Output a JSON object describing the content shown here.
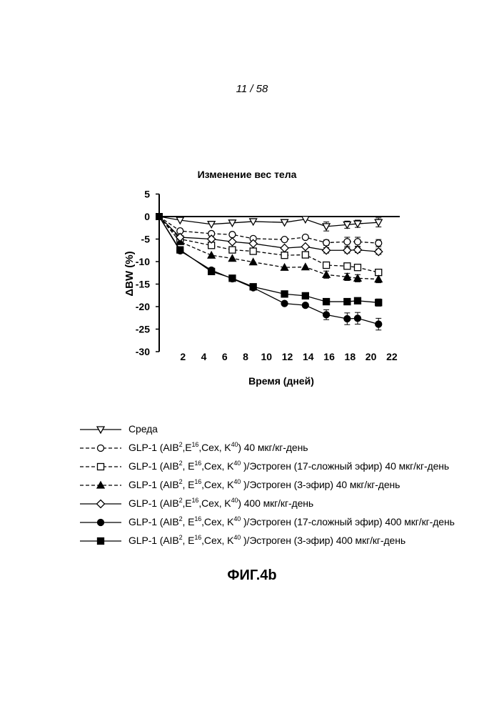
{
  "page_number": "11 / 58",
  "figure_label": "ФИГ.4b",
  "chart_data": {
    "type": "line",
    "title": "Изменение вес тела",
    "xlabel": "Время (дней)",
    "ylabel": "ΔBW (%)",
    "xlim": [
      0,
      23
    ],
    "ylim": [
      -30,
      5
    ],
    "x_ticks": [
      2,
      4,
      6,
      8,
      10,
      12,
      14,
      16,
      18,
      20,
      22
    ],
    "y_ticks": [
      5,
      0,
      -5,
      -10,
      -15,
      -20,
      -25,
      -30
    ],
    "x": [
      0,
      2,
      5,
      7,
      9,
      12,
      14,
      16,
      18,
      19,
      21
    ],
    "series": [
      {
        "name": "Среда",
        "marker": "triangle-down",
        "fill": "open",
        "dash": "solid",
        "values": [
          0,
          -0.8,
          -1.7,
          -1.4,
          -1.1,
          -1.3,
          -0.6,
          -2.2,
          -1.8,
          -1.6,
          -1.3
        ],
        "errors": [
          0,
          0,
          0,
          0,
          0,
          0,
          0,
          1.0,
          0.8,
          0.8,
          1.0
        ]
      },
      {
        "name": "GLP-1 (AIB2,E16,Cex,K40) 40 мкг/кг-день",
        "marker": "circle",
        "fill": "open",
        "dash": "dashed",
        "values": [
          0,
          -3.2,
          -3.8,
          -4.0,
          -4.9,
          -5.1,
          -4.6,
          -5.8,
          -5.6,
          -5.6,
          -5.9
        ],
        "errors": [
          0,
          0,
          0,
          0,
          0,
          0,
          0,
          0.6,
          1.0,
          1.0,
          0.8
        ]
      },
      {
        "name": "GLP-1 (AIB2, E16,Cex, K40)/Эстроген (17-сложный эфир) 40 мкг/кг-день",
        "marker": "square",
        "fill": "open",
        "dash": "dashed",
        "values": [
          0,
          -5.0,
          -6.4,
          -7.4,
          -7.7,
          -8.6,
          -8.5,
          -10.8,
          -11.0,
          -11.3,
          -12.4
        ],
        "errors": [
          0,
          0,
          0,
          0,
          0,
          0,
          0,
          0.5,
          0.6,
          0.6,
          0.6
        ]
      },
      {
        "name": "GLP-1 (AIB2, E16,Cex, K40)/Эстроген (3-эфир) 40 мкг/кг-день",
        "marker": "triangle-up",
        "fill": "filled",
        "dash": "dashed",
        "values": [
          0,
          -5.6,
          -8.6,
          -9.3,
          -10.1,
          -11.3,
          -11.2,
          -12.9,
          -13.4,
          -13.7,
          -13.9
        ],
        "errors": [
          0,
          0,
          0,
          0,
          0,
          0,
          0,
          0.8,
          0.8,
          0.8,
          0.8
        ]
      },
      {
        "name": "GLP-1 (AIB2, E16,Cex, K40) 400 мкг/кг-день",
        "marker": "diamond",
        "fill": "open",
        "dash": "solid",
        "values": [
          0,
          -4.6,
          -5.0,
          -5.6,
          -6.0,
          -7.0,
          -6.7,
          -7.5,
          -7.5,
          -7.4,
          -7.8
        ],
        "errors": [
          0,
          0,
          0,
          0,
          0,
          0,
          0,
          0.6,
          0.6,
          0.6,
          0.6
        ]
      },
      {
        "name": "GLP-1 (AIB2, E16,Cex, K40)/Эстроген (17-сложный эфир) 400 мкг/кг-день",
        "marker": "circle",
        "fill": "filled",
        "dash": "solid",
        "values": [
          0,
          -7.6,
          -11.9,
          -13.8,
          -15.8,
          -19.3,
          -19.7,
          -21.8,
          -22.7,
          -22.6,
          -23.9
        ],
        "errors": [
          0,
          0,
          0,
          0,
          0,
          0,
          0,
          1.1,
          1.3,
          1.3,
          1.3
        ]
      },
      {
        "name": "GLP-1 (AIB2, E16,Cex, K40)/Эстроген (3-эфир) 400 мкг/кг-день",
        "marker": "square",
        "fill": "filled",
        "dash": "solid",
        "values": [
          0,
          -7.4,
          -12.2,
          -13.7,
          -15.6,
          -17.2,
          -17.6,
          -18.9,
          -18.9,
          -18.7,
          -19.1
        ],
        "errors": [
          0,
          0,
          0,
          0,
          0,
          0,
          0,
          0.6,
          0.6,
          0.6,
          0.8
        ]
      }
    ]
  },
  "legend": [
    {
      "marker": "triangle-down",
      "fill": "open",
      "dash": "solid",
      "parts": [
        {
          "t": "Среда"
        }
      ]
    },
    {
      "marker": "circle",
      "fill": "open",
      "dash": "dashed",
      "parts": [
        {
          "t": "GLP-1 (AIB"
        },
        {
          "t": "2",
          "sup": true
        },
        {
          "t": ",E"
        },
        {
          "t": "16",
          "sup": true
        },
        {
          "t": ",Cex, K"
        },
        {
          "t": "40",
          "sup": true
        },
        {
          "t": ") 40 мкг/кг-день"
        }
      ]
    },
    {
      "marker": "square",
      "fill": "open",
      "dash": "dashed",
      "parts": [
        {
          "t": "GLP-1 (AIB"
        },
        {
          "t": "2",
          "sup": true
        },
        {
          "t": ", E"
        },
        {
          "t": "16",
          "sup": true
        },
        {
          "t": ",Cex, K"
        },
        {
          "t": "40",
          "sup": true
        },
        {
          "t": " )/Эстроген (17-сложный эфир) 40 мкг/кг-день"
        }
      ]
    },
    {
      "marker": "triangle-up",
      "fill": "filled",
      "dash": "dashed",
      "parts": [
        {
          "t": "GLP-1 (AIB"
        },
        {
          "t": "2",
          "sup": true
        },
        {
          "t": ", E"
        },
        {
          "t": "16",
          "sup": true
        },
        {
          "t": ",Cex, K"
        },
        {
          "t": "40",
          "sup": true
        },
        {
          "t": " )/Эстроген (3-эфир) 40 мкг/кг-день"
        }
      ]
    },
    {
      "marker": "diamond",
      "fill": "open",
      "dash": "solid",
      "parts": [
        {
          "t": "GLP-1 (AIB"
        },
        {
          "t": "2",
          "sup": true
        },
        {
          "t": ",E"
        },
        {
          "t": "16",
          "sup": true
        },
        {
          "t": ",Cex, K"
        },
        {
          "t": "40",
          "sup": true
        },
        {
          "t": ") 400 мкг/кг-день"
        }
      ]
    },
    {
      "marker": "circle",
      "fill": "filled",
      "dash": "solid",
      "parts": [
        {
          "t": "GLP-1 (AIB"
        },
        {
          "t": "2",
          "sup": true
        },
        {
          "t": ", E"
        },
        {
          "t": "16",
          "sup": true
        },
        {
          "t": ",Cex, K"
        },
        {
          "t": "40",
          "sup": true
        },
        {
          "t": " )/Эстроген (17-сложный эфир) 400 мкг/кг-день"
        }
      ]
    },
    {
      "marker": "square",
      "fill": "filled",
      "dash": "solid",
      "parts": [
        {
          "t": "GLP-1 (AIB"
        },
        {
          "t": "2",
          "sup": true
        },
        {
          "t": ", E"
        },
        {
          "t": "16",
          "sup": true
        },
        {
          "t": ",Cex, K"
        },
        {
          "t": "40",
          "sup": true
        },
        {
          "t": " )/Эстроген (3-эфир) 400 мкг/кг-день"
        }
      ]
    }
  ]
}
